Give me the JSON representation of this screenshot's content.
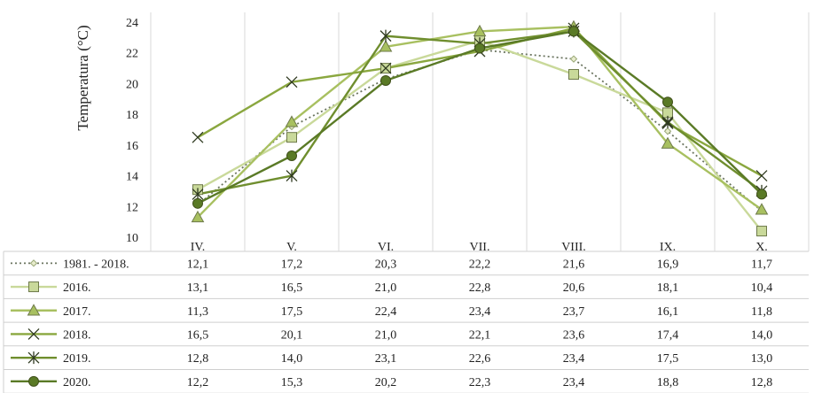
{
  "chart_data": {
    "type": "line",
    "title": "",
    "xlabel": "",
    "ylabel": "Temperatura (°C)",
    "ylim": [
      10,
      24
    ],
    "yticks": [
      10,
      12,
      14,
      16,
      18,
      20,
      22,
      24
    ],
    "grid": "vertical",
    "legend": "data-table",
    "categories": [
      "IV.",
      "V.",
      "VI.",
      "VII.",
      "VIII.",
      "IX.",
      "X."
    ],
    "series": [
      {
        "name": "1981. - 2018.",
        "values": [
          12.1,
          17.2,
          20.3,
          22.2,
          21.6,
          16.9,
          11.7
        ],
        "labels": [
          "12,1",
          "17,2",
          "20,3",
          "22,2",
          "21,6",
          "16,9",
          "11,7"
        ],
        "color": "#d6dfb4",
        "marker": "diamond",
        "dash": "dotted"
      },
      {
        "name": "2016.",
        "values": [
          13.1,
          16.5,
          21.0,
          22.8,
          20.6,
          18.1,
          10.4
        ],
        "labels": [
          "13,1",
          "16,5",
          "21,0",
          "22,8",
          "20,6",
          "18,1",
          "10,4"
        ],
        "color": "#c9d99a",
        "marker": "square",
        "dash": "solid"
      },
      {
        "name": "2017.",
        "values": [
          11.3,
          17.5,
          22.4,
          23.4,
          23.7,
          16.1,
          11.8
        ],
        "labels": [
          "11,3",
          "17,5",
          "22,4",
          "23,4",
          "23,7",
          "16,1",
          "11,8"
        ],
        "color": "#a8c060",
        "marker": "triangle",
        "dash": "solid"
      },
      {
        "name": "2018.",
        "values": [
          16.5,
          20.1,
          21.0,
          22.1,
          23.6,
          17.4,
          14.0
        ],
        "labels": [
          "16,5",
          "20,1",
          "21,0",
          "22,1",
          "23,6",
          "17,4",
          "14,0"
        ],
        "color": "#8aa73f",
        "marker": "x",
        "dash": "solid"
      },
      {
        "name": "2019.",
        "values": [
          12.8,
          14.0,
          23.1,
          22.6,
          23.4,
          17.5,
          13.0
        ],
        "labels": [
          "12,8",
          "14,0",
          "23,1",
          "22,6",
          "23,4",
          "17,5",
          "13,0"
        ],
        "color": "#6f8e2e",
        "marker": "star",
        "dash": "solid"
      },
      {
        "name": "2020.",
        "values": [
          12.2,
          15.3,
          20.2,
          22.3,
          23.4,
          18.8,
          12.8
        ],
        "labels": [
          "12,2",
          "15,3",
          "20,2",
          "22,3",
          "23,4",
          "18,8",
          "12,8"
        ],
        "color": "#5a7a26",
        "marker": "circle",
        "dash": "solid"
      }
    ]
  }
}
